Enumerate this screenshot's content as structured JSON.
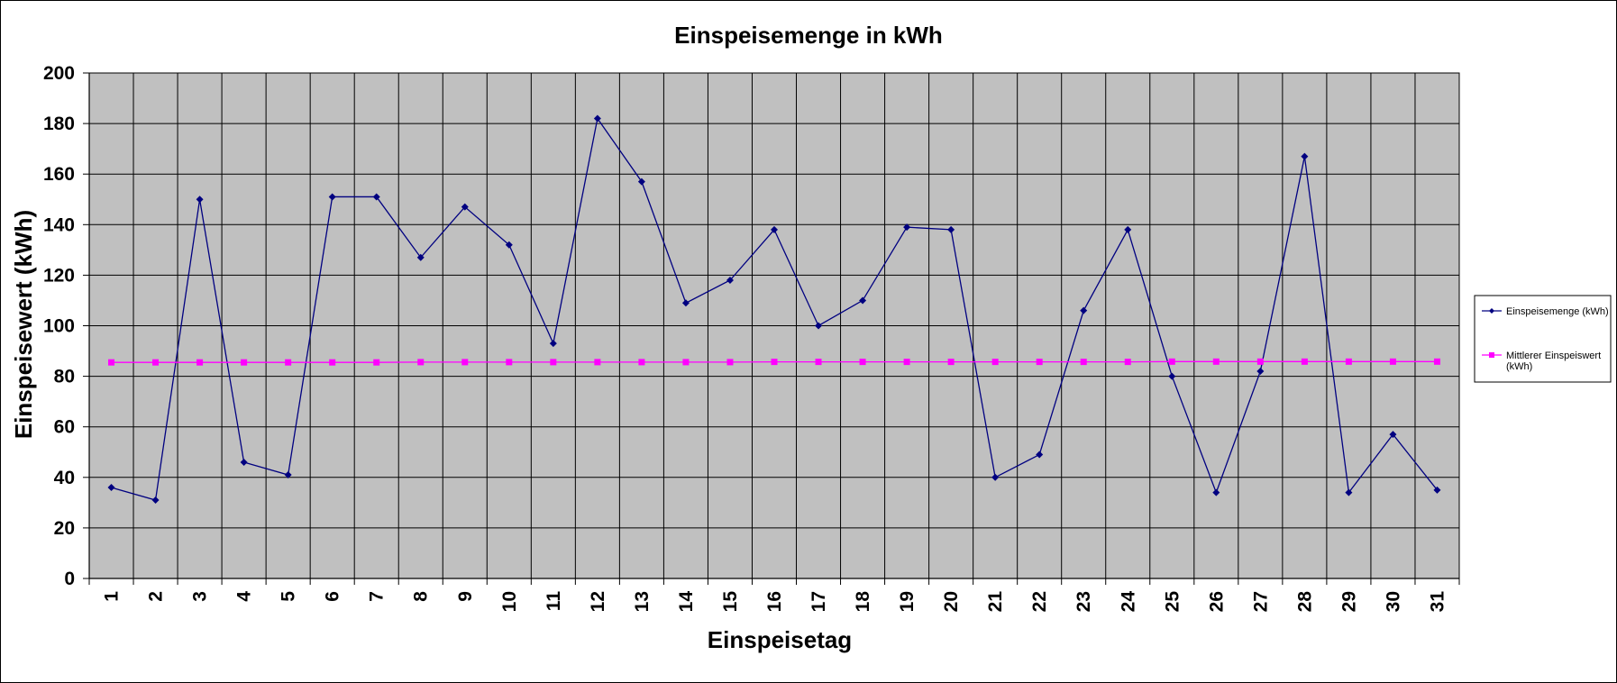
{
  "chart_data": {
    "type": "line",
    "title": "Einspeisemenge in kWh",
    "xlabel": "Einspeisetag",
    "ylabel": "Einspeisewert (kWh)",
    "ylim": [
      0,
      200
    ],
    "yticks": [
      0,
      20,
      40,
      60,
      80,
      100,
      120,
      140,
      160,
      180,
      200
    ],
    "grid": true,
    "legend_position": "right",
    "plot_background": "#c0c0c0",
    "categories": [
      "1",
      "2",
      "3",
      "4",
      "5",
      "6",
      "7",
      "8",
      "9",
      "10",
      "11",
      "12",
      "13",
      "14",
      "15",
      "16",
      "17",
      "18",
      "19",
      "20",
      "21",
      "22",
      "23",
      "24",
      "25",
      "26",
      "27",
      "28",
      "29",
      "30",
      "31"
    ],
    "series": [
      {
        "name": "Einspeisemenge (kWh)",
        "color": "#000080",
        "marker": "diamond",
        "values": [
          36,
          31,
          150,
          46,
          41,
          151,
          151,
          127,
          147,
          132,
          93,
          182,
          157,
          109,
          118,
          138,
          100,
          110,
          139,
          138,
          40,
          49,
          106,
          138,
          80,
          34,
          82,
          167,
          34,
          57,
          35
        ]
      },
      {
        "name": "Mittlerer Einspeiswert (kWh)",
        "legend_lines": [
          "Mittlerer Einspeiswert",
          "(kWh)"
        ],
        "color": "#ff00ff",
        "marker": "square",
        "values": [
          85.5,
          85.5,
          85.5,
          85.5,
          85.5,
          85.5,
          85.5,
          85.6,
          85.6,
          85.6,
          85.6,
          85.6,
          85.6,
          85.6,
          85.6,
          85.7,
          85.7,
          85.7,
          85.7,
          85.7,
          85.7,
          85.7,
          85.7,
          85.7,
          85.8,
          85.8,
          85.8,
          85.8,
          85.8,
          85.8,
          85.8
        ]
      }
    ]
  }
}
